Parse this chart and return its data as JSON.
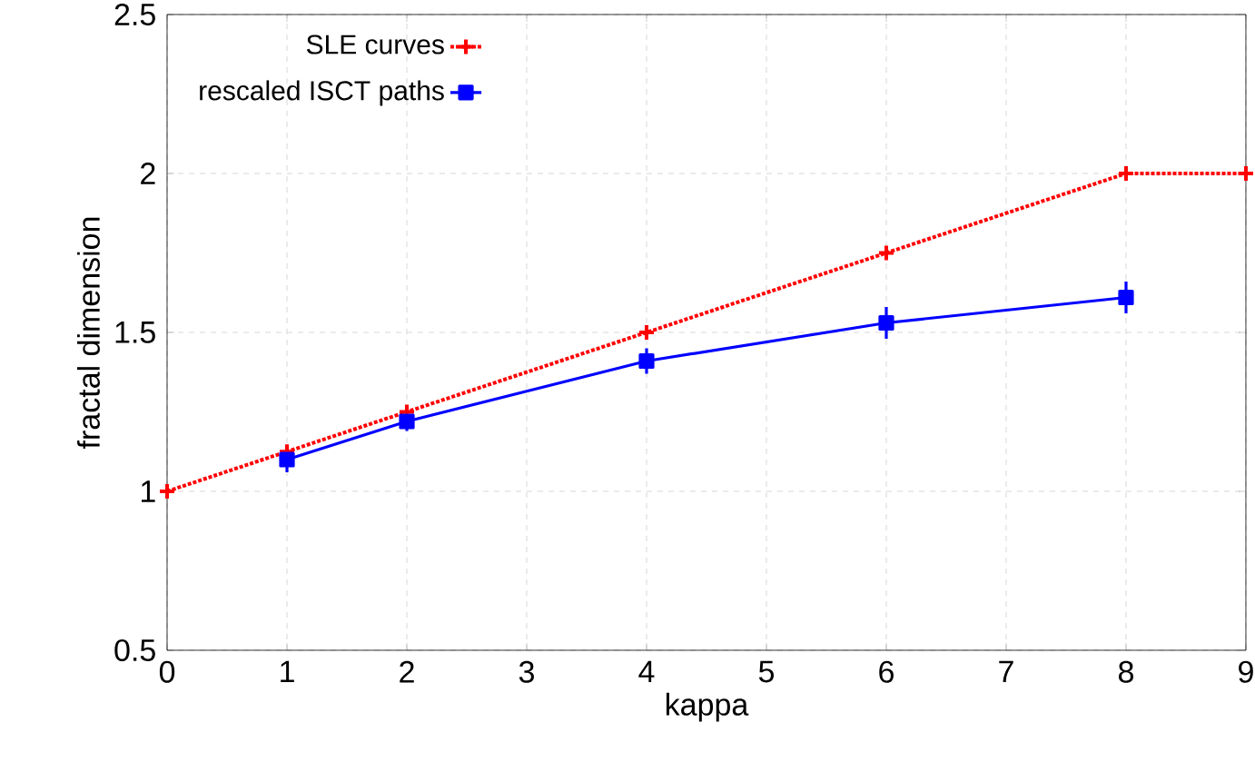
{
  "chart_data": {
    "type": "line",
    "xlabel": "kappa",
    "ylabel": "fractal dimension",
    "xlim": [
      0,
      9
    ],
    "ylim": [
      0.5,
      2.5
    ],
    "xticks": [
      0,
      1,
      2,
      3,
      4,
      5,
      6,
      7,
      8,
      9
    ],
    "yticks": [
      0.5,
      1,
      1.5,
      2,
      2.5
    ],
    "grid": true,
    "legend": "top left",
    "series": [
      {
        "name": "SLE curves",
        "color": "#ff0000",
        "marker": "cross",
        "line_style": "dotted",
        "x": [
          0,
          1,
          2,
          4,
          6,
          8,
          9
        ],
        "values": [
          1,
          1.125,
          1.25,
          1.5,
          1.75,
          2,
          2
        ]
      },
      {
        "name": "rescaled ISCT paths",
        "color": "#0000ff",
        "marker": "square",
        "line_style": "solid",
        "x": [
          1,
          2,
          4,
          6,
          8
        ],
        "values": [
          1.1,
          1.22,
          1.41,
          1.53,
          1.61
        ],
        "errors": [
          0.04,
          0.03,
          0.04,
          0.05,
          0.05
        ]
      }
    ]
  }
}
